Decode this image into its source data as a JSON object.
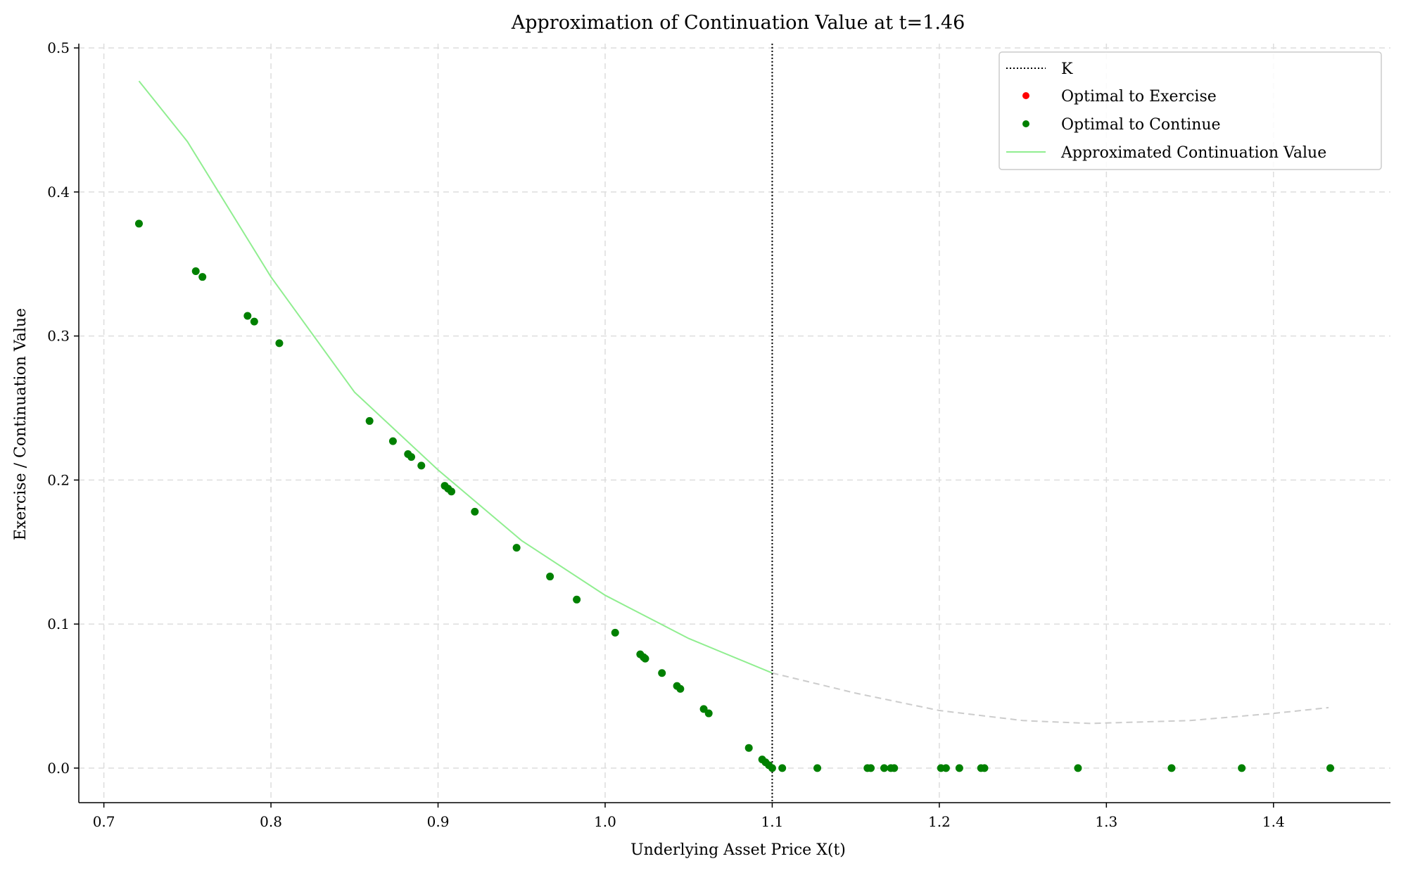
{
  "chart_data": {
    "type": "scatter",
    "title": "Approximation of Continuation Value at t=1.46",
    "xlabel": "Underlying Asset Price X(t)",
    "ylabel": "Exercise / Continuation Value",
    "xlim": [
      0.685,
      1.47
    ],
    "ylim": [
      -0.024,
      0.503
    ],
    "x_ticks": [
      0.7,
      0.8,
      0.9,
      1.0,
      1.1,
      1.2,
      1.3,
      1.4
    ],
    "x_tick_labels": [
      "0.7",
      "0.8",
      "0.9",
      "1.0",
      "1.1",
      "1.2",
      "1.3",
      "1.4"
    ],
    "y_ticks": [
      0.0,
      0.1,
      0.2,
      0.3,
      0.4,
      0.5
    ],
    "y_tick_labels": [
      "0.0",
      "0.1",
      "0.2",
      "0.3",
      "0.4",
      "0.5"
    ],
    "grid": true,
    "legend_position": "top-right",
    "strike": 1.1,
    "colors": {
      "strike": "#000000",
      "exercise": "#ff0000",
      "continue": "#008000",
      "continuation_curve": "#90ee90",
      "extrapolated_curve": "#cccccc",
      "grid": "#dddddd"
    },
    "legend": [
      {
        "key": "strike",
        "label": "K"
      },
      {
        "key": "exercise",
        "label": "Optimal to Exercise"
      },
      {
        "key": "continue",
        "label": "Optimal to Continue"
      },
      {
        "key": "curve",
        "label": "Approximated Continuation Value"
      }
    ],
    "series": [
      {
        "name": "Optimal to Exercise",
        "points": []
      },
      {
        "name": "Optimal to Continue",
        "points": [
          [
            0.721,
            0.378
          ],
          [
            0.755,
            0.345
          ],
          [
            0.759,
            0.341
          ],
          [
            0.786,
            0.314
          ],
          [
            0.79,
            0.31
          ],
          [
            0.805,
            0.295
          ],
          [
            0.859,
            0.241
          ],
          [
            0.873,
            0.227
          ],
          [
            0.882,
            0.218
          ],
          [
            0.884,
            0.216
          ],
          [
            0.89,
            0.21
          ],
          [
            0.904,
            0.196
          ],
          [
            0.906,
            0.194
          ],
          [
            0.908,
            0.192
          ],
          [
            0.922,
            0.178
          ],
          [
            0.947,
            0.153
          ],
          [
            0.967,
            0.133
          ],
          [
            0.983,
            0.117
          ],
          [
            1.006,
            0.094
          ],
          [
            1.021,
            0.079
          ],
          [
            1.023,
            0.077
          ],
          [
            1.024,
            0.076
          ],
          [
            1.034,
            0.066
          ],
          [
            1.043,
            0.057
          ],
          [
            1.045,
            0.055
          ],
          [
            1.059,
            0.041
          ],
          [
            1.062,
            0.038
          ],
          [
            1.086,
            0.014
          ],
          [
            1.094,
            0.006
          ],
          [
            1.096,
            0.004
          ],
          [
            1.098,
            0.002
          ],
          [
            1.1,
            0.0
          ],
          [
            1.106,
            0.0
          ],
          [
            1.127,
            0.0
          ],
          [
            1.157,
            0.0
          ],
          [
            1.159,
            0.0
          ],
          [
            1.167,
            0.0
          ],
          [
            1.171,
            0.0
          ],
          [
            1.173,
            0.0
          ],
          [
            1.201,
            0.0
          ],
          [
            1.204,
            0.0
          ],
          [
            1.212,
            0.0
          ],
          [
            1.225,
            0.0
          ],
          [
            1.227,
            0.0
          ],
          [
            1.283,
            0.0
          ],
          [
            1.339,
            0.0
          ],
          [
            1.381,
            0.0
          ],
          [
            1.434,
            0.0
          ]
        ]
      },
      {
        "name": "Approximated Continuation Value",
        "points": [
          [
            0.721,
            0.477
          ],
          [
            0.75,
            0.435
          ],
          [
            0.8,
            0.341
          ],
          [
            0.85,
            0.261
          ],
          [
            0.9,
            0.207
          ],
          [
            0.95,
            0.158
          ],
          [
            1.0,
            0.12
          ],
          [
            1.05,
            0.09
          ],
          [
            1.1,
            0.066
          ]
        ]
      },
      {
        "name": "",
        "points": [
          [
            1.1,
            0.066
          ],
          [
            1.15,
            0.052
          ],
          [
            1.2,
            0.04
          ],
          [
            1.25,
            0.033
          ],
          [
            1.29,
            0.031
          ],
          [
            1.35,
            0.033
          ],
          [
            1.4,
            0.038
          ],
          [
            1.433,
            0.042
          ]
        ]
      }
    ]
  }
}
